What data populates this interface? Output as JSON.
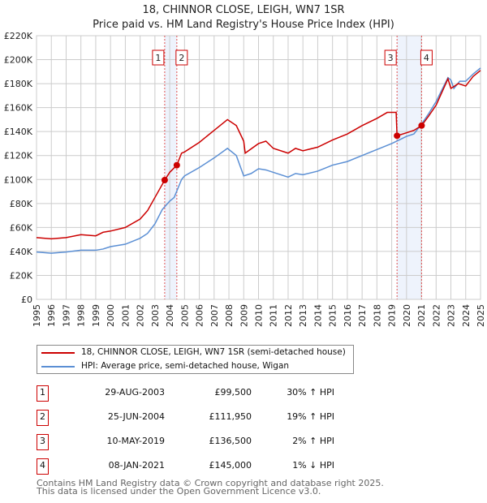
{
  "chart_data": {
    "type": "line",
    "title": "18, CHINNOR CLOSE, LEIGH, WN7 1SR",
    "subtitle": "Price paid vs. HM Land Registry's House Price Index (HPI)",
    "xlim": [
      1995,
      2025
    ],
    "ylim": [
      0,
      220000
    ],
    "yticks": [
      "£0",
      "£20K",
      "£40K",
      "£60K",
      "£80K",
      "£100K",
      "£120K",
      "£140K",
      "£160K",
      "£180K",
      "£200K",
      "£220K"
    ],
    "xticks": [
      "1995",
      "1996",
      "1997",
      "1998",
      "1999",
      "2000",
      "2001",
      "2002",
      "2003",
      "2004",
      "2005",
      "2006",
      "2007",
      "2008",
      "2009",
      "2010",
      "2011",
      "2012",
      "2013",
      "2014",
      "2015",
      "2016",
      "2017",
      "2018",
      "2019",
      "2020",
      "2021",
      "2022",
      "2023",
      "2024",
      "2025"
    ],
    "series": [
      {
        "name": "18, CHINNOR CLOSE, LEIGH, WN7 1SR (semi-detached house)",
        "color": "#cc0000",
        "x": [
          1995,
          1996,
          1997,
          1998,
          1999,
          1999.5,
          2000,
          2001,
          2002,
          2002.5,
          2003,
          2003.66,
          2004,
          2004.48,
          2004.8,
          2005,
          2006,
          2007,
          2007.9,
          2008.5,
          2009,
          2009.1,
          2010,
          2010.5,
          2011,
          2012,
          2012.5,
          2013,
          2014,
          2015,
          2016,
          2017,
          2018,
          2018.7,
          2019.3,
          2019.36,
          2020,
          2020.5,
          2021.02,
          2021.5,
          2022,
          2022.8,
          2023,
          2023.5,
          2024,
          2024.5,
          2025
        ],
        "y": [
          51500,
          50500,
          51500,
          54000,
          53000,
          56000,
          57000,
          60000,
          67000,
          74000,
          85000,
          99500,
          106000,
          111950,
          122000,
          123000,
          131000,
          141000,
          150000,
          145000,
          132000,
          122000,
          130000,
          132000,
          126000,
          122000,
          126000,
          124000,
          127000,
          133000,
          138000,
          145000,
          151000,
          156000,
          156000,
          136500,
          139000,
          141000,
          145000,
          153000,
          162000,
          184000,
          176000,
          180000,
          178000,
          186000,
          191000
        ]
      },
      {
        "name": "HPI: Average price, semi-detached house, Wigan",
        "color": "#5b8fd4",
        "x": [
          1995,
          1996,
          1997,
          1998,
          1999,
          1999.5,
          2000,
          2001,
          2002,
          2002.5,
          2003,
          2003.5,
          2004,
          2004.3,
          2004.8,
          2005,
          2006,
          2007,
          2007.9,
          2008.5,
          2009,
          2009.5,
          2010,
          2010.5,
          2011,
          2012,
          2012.5,
          2013,
          2014,
          2015,
          2016,
          2017,
          2018,
          2019,
          2019.5,
          2020,
          2020.5,
          2021,
          2021.5,
          2022,
          2022.8,
          2023,
          2023.2,
          2023.6,
          2024,
          2024.5,
          2025
        ],
        "y": [
          39500,
          38500,
          39500,
          41000,
          41000,
          42000,
          44000,
          46000,
          51000,
          55000,
          63000,
          75000,
          82000,
          85000,
          100000,
          103000,
          110000,
          118000,
          126000,
          120000,
          103000,
          105000,
          109000,
          108000,
          106000,
          102000,
          105000,
          104000,
          107000,
          112000,
          115000,
          120000,
          125000,
          130000,
          133000,
          136000,
          138000,
          146000,
          155000,
          165000,
          185000,
          183000,
          176000,
          182000,
          182000,
          188000,
          193000
        ]
      }
    ],
    "sales": [
      {
        "n": "1",
        "x": 2003.66,
        "y": 99500,
        "date": "29-AUG-2003",
        "price": "£99,500",
        "hpi": "30% ↑ HPI"
      },
      {
        "n": "2",
        "x": 2004.48,
        "y": 111950,
        "date": "25-JUN-2004",
        "price": "£111,950",
        "hpi": "19% ↑ HPI"
      },
      {
        "n": "3",
        "x": 2019.36,
        "y": 136500,
        "date": "10-MAY-2019",
        "price": "£136,500",
        "hpi": "2% ↑ HPI"
      },
      {
        "n": "4",
        "x": 2021.02,
        "y": 145000,
        "date": "08-JAN-2021",
        "price": "£145,000",
        "hpi": "1% ↓ HPI"
      }
    ],
    "shaded": [
      [
        2003.66,
        2004.48
      ],
      [
        2019.36,
        2021.02
      ]
    ],
    "grid": true
  },
  "footer": {
    "line1": "Contains HM Land Registry data © Crown copyright and database right 2025.",
    "line2": "This data is licensed under the Open Government Licence v3.0."
  }
}
